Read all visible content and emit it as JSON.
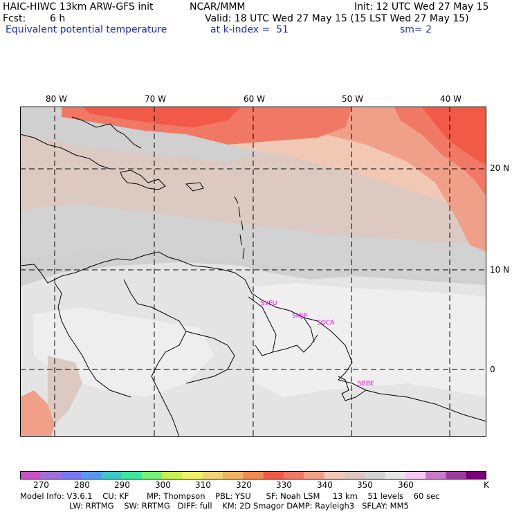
{
  "header": {
    "title_left": "HAIC-HIWC 13km ARW-GFS init",
    "title_center": "NCAR/MMM",
    "init": "Init: 12 UTC Wed 27 May 15",
    "fcst_label": "Fcst:",
    "fcst_value": "6 h",
    "valid": "Valid: 18 UTC Wed 27 May 15 (15 LST Wed 27 May 15)",
    "field": "Equivalent potential temperature",
    "level": "at k-index =  51",
    "smoothing": "sm= 2"
  },
  "map": {
    "lon_labels": [
      "80 W",
      "70 W",
      "60 W",
      "50 W",
      "40 W"
    ],
    "lat_labels": [
      "20 N",
      "10 N",
      "0"
    ],
    "stations": [
      "SYEU",
      "SMJP",
      "SOCA",
      "SBBE"
    ],
    "colors": {
      "land_line": "#000000",
      "station": "#e000e0",
      "grid": "#000000"
    }
  },
  "colorbar": {
    "labels": [
      "270",
      "280",
      "290",
      "300",
      "310",
      "320",
      "330",
      "340",
      "350",
      "360",
      "K"
    ],
    "colors": [
      "#c850c8",
      "#a070d8",
      "#7878f0",
      "#5a96f0",
      "#3cc8c8",
      "#3ce6a0",
      "#78f078",
      "#c8f050",
      "#f0f064",
      "#f0d278",
      "#f0b464",
      "#f08c50",
      "#f05a46",
      "#f07864",
      "#f0a088",
      "#f0c8b4",
      "#dcc8c0",
      "#d2d2d2",
      "#e6e6e6",
      "#f5c8f5",
      "#c87ac8",
      "#a03ca0",
      "#780078"
    ]
  },
  "footer": {
    "line1": "Model Info: V3.6.1    CU: KF       MP: Thompson    PBL: YSU      SF: Noah LSM     13 km    51 levels    60 sec",
    "line2": "LW: RRTMG    SW: RRTMG   DIFF: full    KM: 2D Smagor DAMP: Rayleigh3   SFLAY: MM5"
  }
}
